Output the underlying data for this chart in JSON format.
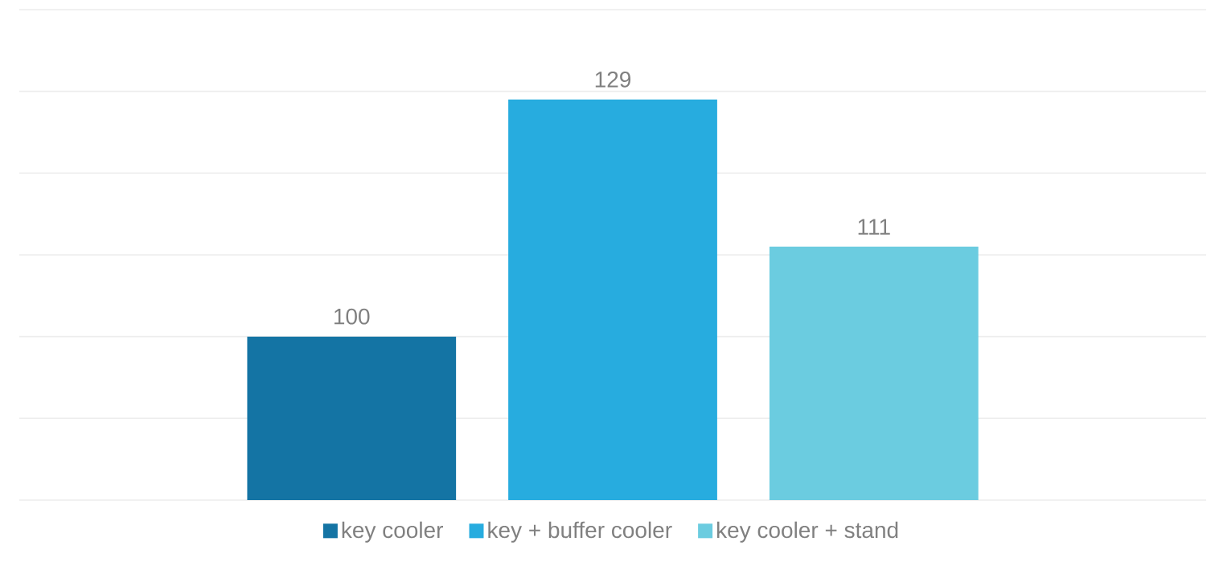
{
  "chart_data": {
    "type": "bar",
    "categories": [
      null
    ],
    "series": [
      {
        "name": "key cooler",
        "color": "#1474a4",
        "values": [
          100
        ]
      },
      {
        "name": "key + buffer cooler",
        "color": "#27acdf",
        "values": [
          129
        ]
      },
      {
        "name": "key cooler + stand",
        "color": "#6bcce0",
        "values": [
          111
        ]
      }
    ],
    "ylim": [
      80,
      140
    ],
    "yticks": [
      {
        "value": 80,
        "label": null
      },
      {
        "value": 90,
        "label": null
      },
      {
        "value": 100,
        "label": null
      },
      {
        "value": 110,
        "label": null
      },
      {
        "value": 120,
        "label": null
      },
      {
        "value": 130,
        "label": null
      },
      {
        "value": 140,
        "label": null
      }
    ],
    "grid": "y",
    "legend": "bottom",
    "data_labels": true,
    "tick_labels": false
  }
}
